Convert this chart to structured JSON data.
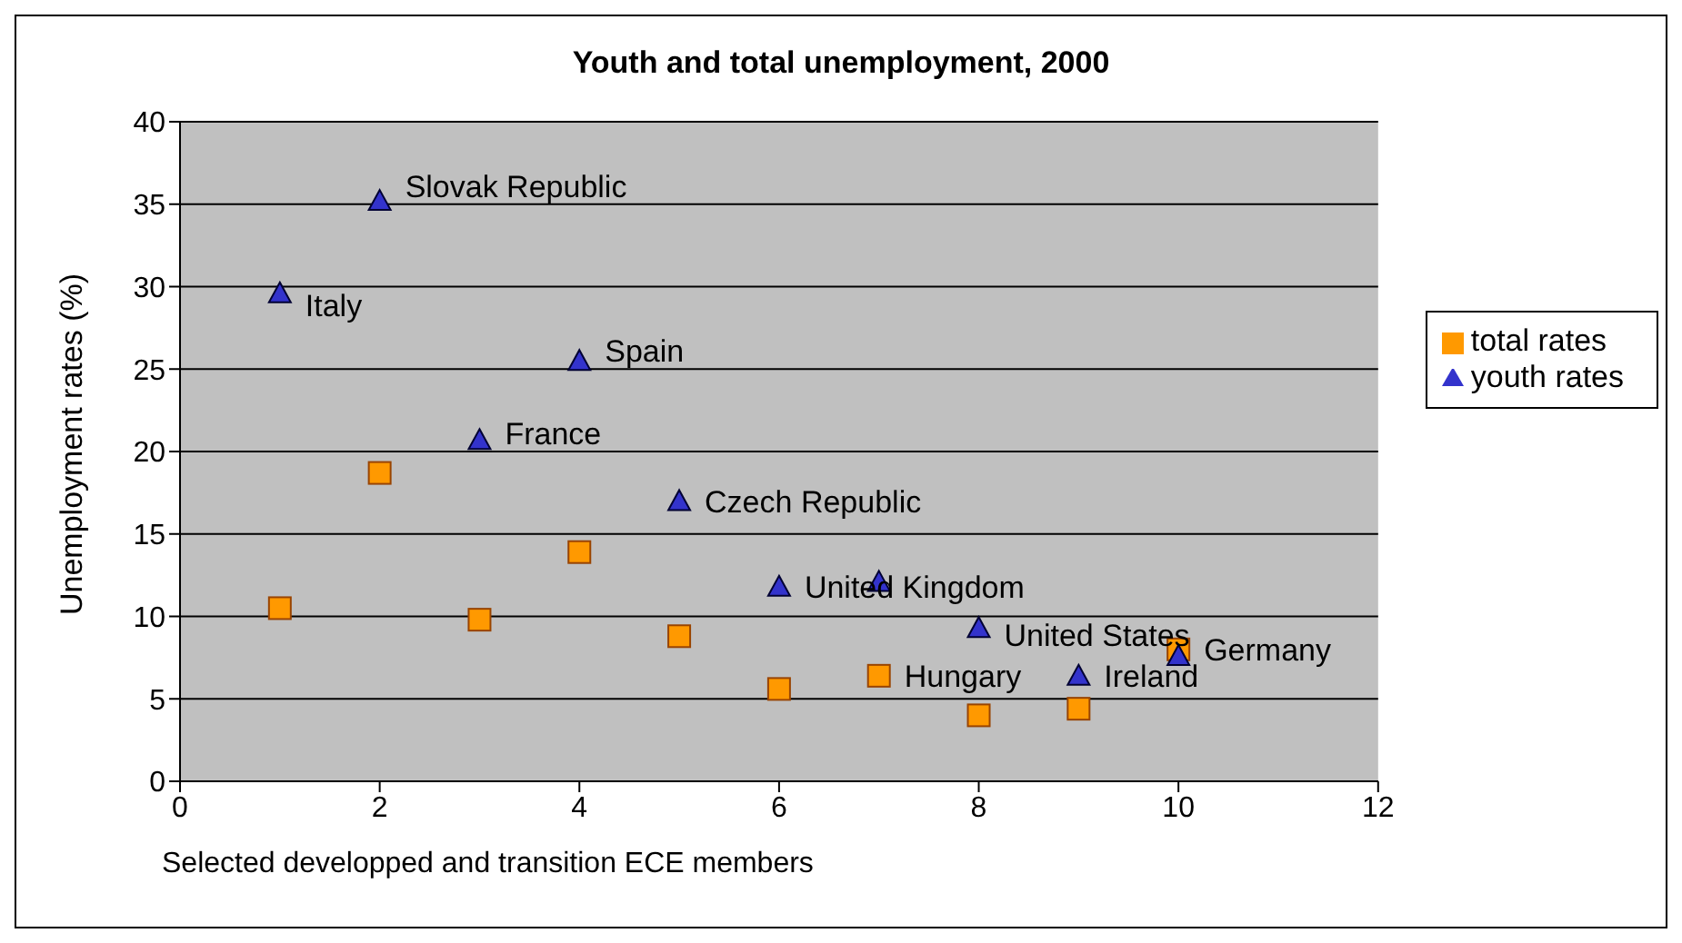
{
  "chart_data": {
    "type": "scatter",
    "title": "Youth and total unemployment, 2000",
    "xlabel": "Selected developped and transition ECE members",
    "ylabel": "Unemployment rates (%)",
    "xlim": [
      0,
      12
    ],
    "xticks": [
      0,
      2,
      4,
      6,
      8,
      10,
      12
    ],
    "ylim": [
      0,
      40
    ],
    "yticks": [
      0,
      5,
      10,
      15,
      20,
      25,
      30,
      35,
      40
    ],
    "grid": "y",
    "legend": "right",
    "series": [
      {
        "name": "youth rates",
        "color": "#3333cc",
        "marker": "triangle",
        "x": [
          1,
          2,
          3,
          4,
          5,
          6,
          7,
          8,
          9,
          10
        ],
        "values": [
          29.6,
          35.2,
          20.7,
          25.5,
          17.0,
          11.8,
          12.1,
          9.3,
          6.4,
          7.6
        ]
      },
      {
        "name": "total rates",
        "color": "#ff9900",
        "marker": "square",
        "x": [
          1,
          2,
          3,
          4,
          5,
          6,
          7,
          8,
          9,
          10
        ],
        "values": [
          10.5,
          18.7,
          9.8,
          13.9,
          8.8,
          5.6,
          6.4,
          4.0,
          4.4,
          8.0
        ]
      }
    ],
    "annotations": [
      {
        "text": "Italy",
        "x": 1,
        "y": 29.6
      },
      {
        "text": "Slovak Republic",
        "x": 2,
        "y": 35.2
      },
      {
        "text": "France",
        "x": 3,
        "y": 20.7
      },
      {
        "text": "Spain",
        "x": 4,
        "y": 25.5
      },
      {
        "text": "Czech Republic",
        "x": 5,
        "y": 17.0
      },
      {
        "text": "United Kingdom",
        "x": 6,
        "y": 11.8
      },
      {
        "text": "Hungary",
        "x": 7,
        "y": 6.4
      },
      {
        "text": "United States",
        "x": 8,
        "y": 9.3
      },
      {
        "text": "Ireland",
        "x": 9,
        "y": 6.4
      },
      {
        "text": "Germany",
        "x": 10,
        "y": 8.0
      }
    ]
  }
}
